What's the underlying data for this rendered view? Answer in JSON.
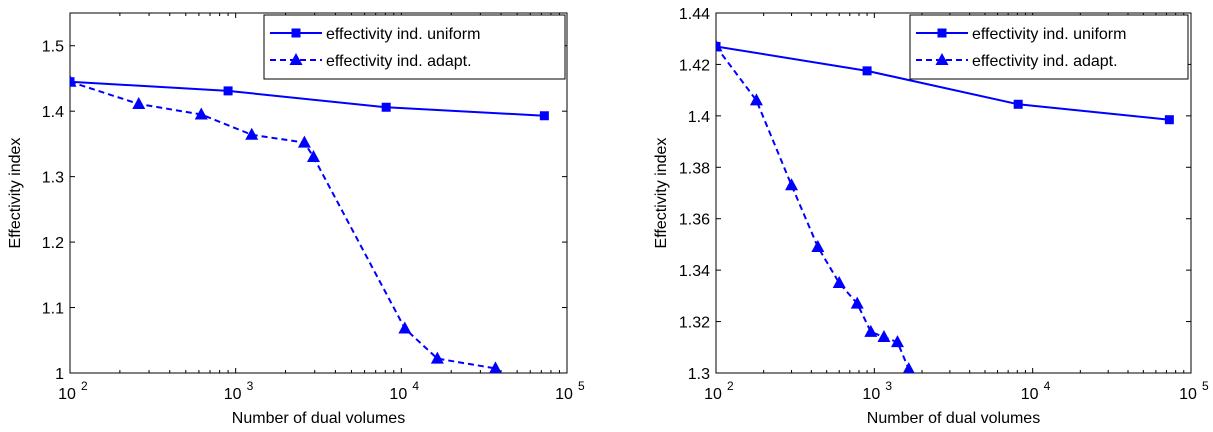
{
  "chart_data": [
    {
      "type": "line",
      "xscale": "log",
      "xlabel": "Number of dual volumes",
      "ylabel": "Effectivity index",
      "xlim": [
        100,
        100000
      ],
      "ylim": [
        1.0,
        1.55
      ],
      "xticks": [
        100,
        1000,
        10000,
        100000
      ],
      "xtick_labels": [
        {
          "base": "10",
          "exp": "2"
        },
        {
          "base": "10",
          "exp": "3"
        },
        {
          "base": "10",
          "exp": "4"
        },
        {
          "base": "10",
          "exp": "5"
        }
      ],
      "yticks": [
        1.0,
        1.1,
        1.2,
        1.3,
        1.4,
        1.5
      ],
      "ytick_labels": [
        "1",
        "1.1",
        "1.2",
        "1.3",
        "1.4",
        "1.5"
      ],
      "grid": false,
      "legend_position": "top-right",
      "color": "#0000ff",
      "series": [
        {
          "name": "effectivity ind. uniform",
          "line_style": "solid",
          "marker": "square",
          "x": [
            100,
            900,
            8100,
            73000
          ],
          "y": [
            1.445,
            1.431,
            1.406,
            1.393
          ]
        },
        {
          "name": "effectivity ind. adapt.",
          "line_style": "dashed",
          "marker": "triangle",
          "x": [
            100,
            260,
            620,
            1250,
            2600,
            2950,
            10500,
            16500,
            37000
          ],
          "y": [
            1.445,
            1.411,
            1.395,
            1.364,
            1.352,
            1.33,
            1.068,
            1.022,
            1.007
          ]
        }
      ]
    },
    {
      "type": "line",
      "xscale": "log",
      "xlabel": "Number of dual volumes",
      "ylabel": "Effectivity index",
      "xlim": [
        100,
        100000
      ],
      "ylim": [
        1.3,
        1.44
      ],
      "xticks": [
        100,
        1000,
        10000,
        100000
      ],
      "xtick_labels": [
        {
          "base": "10",
          "exp": "2"
        },
        {
          "base": "10",
          "exp": "3"
        },
        {
          "base": "10",
          "exp": "4"
        },
        {
          "base": "10",
          "exp": "5"
        }
      ],
      "yticks": [
        1.3,
        1.32,
        1.34,
        1.36,
        1.38,
        1.4,
        1.42,
        1.44
      ],
      "ytick_labels": [
        "1.3",
        "1.32",
        "1.34",
        "1.36",
        "1.38",
        "1.4",
        "1.42",
        "1.44"
      ],
      "grid": false,
      "legend_position": "top-right",
      "color": "#0000ff",
      "series": [
        {
          "name": "effectivity ind. uniform",
          "line_style": "solid",
          "marker": "square",
          "x": [
            100,
            900,
            8100,
            73000
          ],
          "y": [
            1.427,
            1.4175,
            1.4045,
            1.3985
          ]
        },
        {
          "name": "effectivity ind. adapt.",
          "line_style": "dashed",
          "marker": "triangle",
          "x": [
            100,
            180,
            300,
            440,
            600,
            780,
            950,
            1150,
            1400,
            1650
          ],
          "y": [
            1.427,
            1.406,
            1.373,
            1.349,
            1.335,
            1.327,
            1.316,
            1.314,
            1.312,
            1.3015
          ]
        }
      ]
    }
  ]
}
